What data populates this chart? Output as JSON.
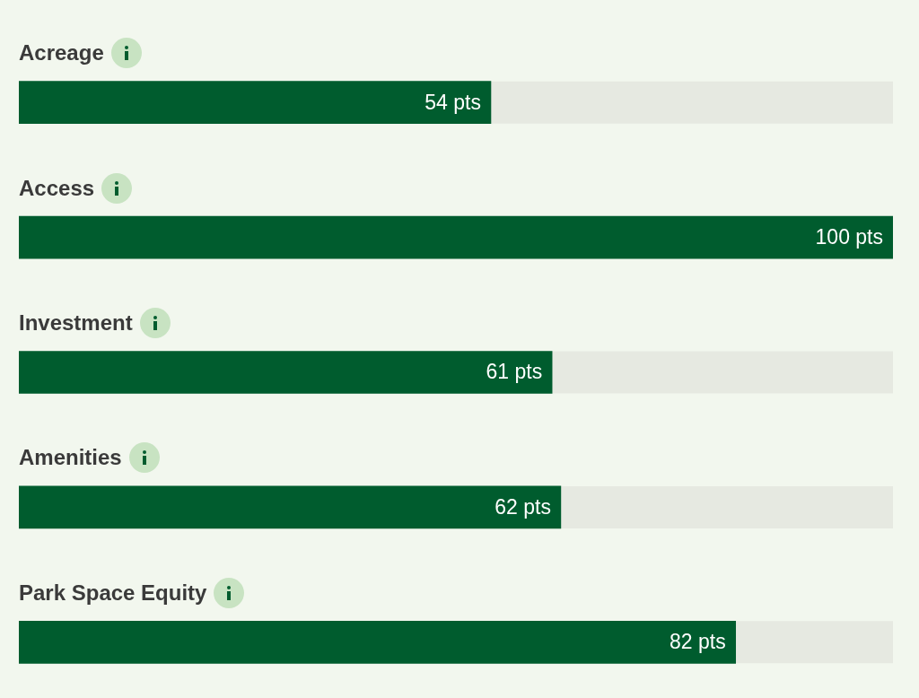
{
  "chart_data": {
    "type": "bar",
    "orientation": "horizontal",
    "categories": [
      "Acreage",
      "Access",
      "Investment",
      "Amenities",
      "Park Space Equity"
    ],
    "values": [
      54,
      100,
      61,
      62,
      82
    ],
    "value_labels": [
      "54 pts",
      "100 pts",
      "61 pts",
      "62 pts",
      "82 pts"
    ],
    "color": "#005c2e",
    "xlim": [
      0,
      100
    ],
    "tick_labels": "y",
    "legend": false,
    "grid": false
  }
}
